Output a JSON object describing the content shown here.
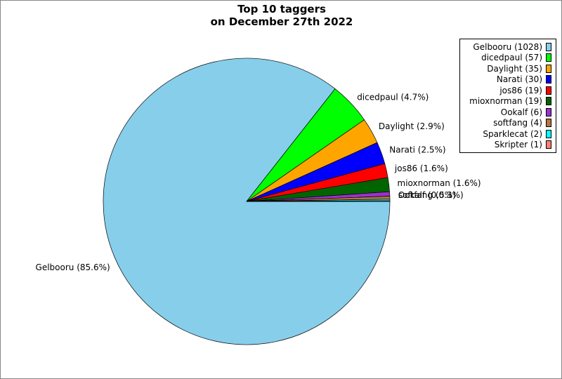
{
  "chart_data": {
    "type": "pie",
    "title": "Top 10 taggers\non December 27th 2022",
    "categories": [
      "Gelbooru",
      "dicedpaul",
      "Daylight",
      "Narati",
      "jos86",
      "mioxnorman",
      "Ookalf",
      "softfang",
      "Sparklecat",
      "Skripter"
    ],
    "values": [
      1028,
      57,
      35,
      30,
      19,
      19,
      6,
      4,
      2,
      1
    ],
    "legend_labels": [
      "Gelbooru (1028)",
      "dicedpaul (57)",
      "Daylight (35)",
      "Narati (30)",
      "jos86 (19)",
      "mioxnorman (19)",
      "Ookalf (6)",
      "softfang (4)",
      "Sparklecat (2)",
      "Skripter (1)"
    ],
    "slice_labels": [
      "Gelbooru (85.6%)",
      "dicedpaul (4.7%)",
      "Daylight (2.9%)",
      "Narati (2.5%)",
      "jos86 (1.6%)",
      "mioxnorman (1.6%)",
      "Ookalf (0.5%)",
      "softfang (0.3%)",
      "",
      ""
    ],
    "colors": [
      "#87ceeb",
      "#00ff00",
      "#ffa500",
      "#0000ff",
      "#ff0000",
      "#006400",
      "#9932cc",
      "#b8733a",
      "#00ffff",
      "#fa8072"
    ],
    "legend_position": "top-right",
    "start_angle_deg": 0,
    "direction": "clockwise"
  }
}
